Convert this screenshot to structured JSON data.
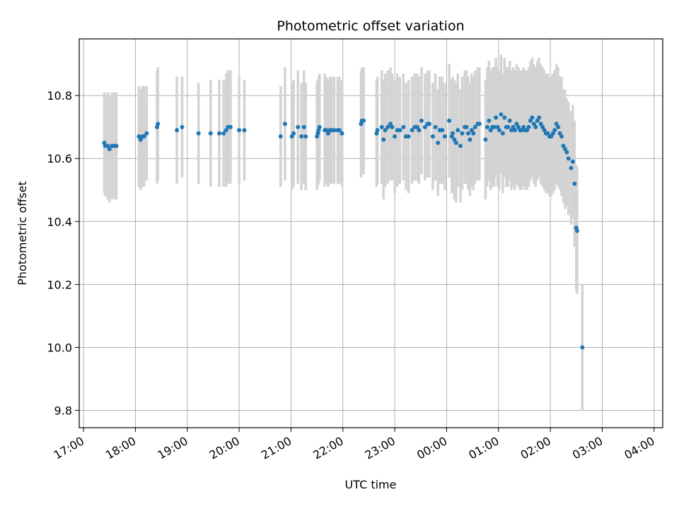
{
  "chart_data": {
    "type": "scatter",
    "title": "Photometric offset variation",
    "xlabel": "UTC time",
    "ylabel": "Photometric offset",
    "grid": true,
    "legend": "none",
    "xlim": [
      "16:55",
      "28:10"
    ],
    "ylim": [
      9.745,
      10.98
    ],
    "xticks": [
      "17:00",
      "18:00",
      "19:00",
      "20:00",
      "21:00",
      "22:00",
      "23:00",
      "00:00",
      "01:00",
      "02:00",
      "03:00",
      "04:00"
    ],
    "yticks": [
      9.8,
      10.0,
      10.2,
      10.4,
      10.6,
      10.8
    ],
    "colors": {
      "points": "#1f77b4",
      "errorbars": "#d3d3d3",
      "grid": "#b0b0b0"
    },
    "series": [
      {
        "points": [
          [
            "17:24",
            10.65,
            0.16
          ],
          [
            "17:25",
            10.64,
            0.16
          ],
          [
            "17:28",
            10.64,
            0.17
          ],
          [
            "17:30",
            10.63,
            0.17
          ],
          [
            "17:33",
            10.64,
            0.17
          ],
          [
            "17:36",
            10.64,
            0.17
          ],
          [
            "17:38",
            10.64,
            0.17
          ],
          [
            "18:04",
            10.67,
            0.16
          ],
          [
            "18:06",
            10.66,
            0.16
          ],
          [
            "18:08",
            10.67,
            0.16
          ],
          [
            "18:10",
            10.67,
            0.16
          ],
          [
            "18:13",
            10.68,
            0.15
          ],
          [
            "18:25",
            10.7,
            0.18
          ],
          [
            "18:26",
            10.71,
            0.18
          ],
          [
            "18:48",
            10.69,
            0.17
          ],
          [
            "18:54",
            10.7,
            0.16
          ],
          [
            "19:13",
            10.68,
            0.16
          ],
          [
            "19:27",
            10.68,
            0.17
          ],
          [
            "19:37",
            10.68,
            0.17
          ],
          [
            "19:42",
            10.68,
            0.17
          ],
          [
            "19:45",
            10.69,
            0.18
          ],
          [
            "19:47",
            10.7,
            0.18
          ],
          [
            "19:50",
            10.7,
            0.18
          ],
          [
            "20:00",
            10.69,
            0.17
          ],
          [
            "20:06",
            10.69,
            0.16
          ],
          [
            "20:48",
            10.67,
            0.16
          ],
          [
            "20:53",
            10.71,
            0.18
          ],
          [
            "21:01",
            10.67,
            0.17
          ],
          [
            "21:03",
            10.68,
            0.17
          ],
          [
            "21:08",
            10.7,
            0.18
          ],
          [
            "21:12",
            10.67,
            0.17
          ],
          [
            "21:15",
            10.7,
            0.18
          ],
          [
            "21:17",
            10.67,
            0.17
          ],
          [
            "21:30",
            10.67,
            0.17
          ],
          [
            "21:31",
            10.68,
            0.17
          ],
          [
            "21:32",
            10.69,
            0.17
          ],
          [
            "21:33",
            10.7,
            0.17
          ],
          [
            "21:39",
            10.69,
            0.18
          ],
          [
            "21:41",
            10.69,
            0.17
          ],
          [
            "21:43",
            10.68,
            0.17
          ],
          [
            "21:45",
            10.69,
            0.17
          ],
          [
            "21:47",
            10.69,
            0.17
          ],
          [
            "21:50",
            10.69,
            0.17
          ],
          [
            "21:54",
            10.69,
            0.17
          ],
          [
            "21:56",
            10.69,
            0.17
          ],
          [
            "21:59",
            10.68,
            0.17
          ],
          [
            "22:21",
            10.71,
            0.17
          ],
          [
            "22:22",
            10.72,
            0.17
          ],
          [
            "22:24",
            10.72,
            0.17
          ],
          [
            "22:39",
            10.68,
            0.17
          ],
          [
            "22:40",
            10.69,
            0.17
          ],
          [
            "22:45",
            10.7,
            0.18
          ],
          [
            "22:47",
            10.66,
            0.19
          ],
          [
            "22:49",
            10.69,
            0.18
          ],
          [
            "22:52",
            10.7,
            0.18
          ],
          [
            "22:55",
            10.71,
            0.18
          ],
          [
            "22:57",
            10.7,
            0.17
          ],
          [
            "23:00",
            10.67,
            0.18
          ],
          [
            "23:03",
            10.69,
            0.18
          ],
          [
            "23:06",
            10.69,
            0.17
          ],
          [
            "23:10",
            10.7,
            0.17
          ],
          [
            "23:13",
            10.67,
            0.17
          ],
          [
            "23:16",
            10.67,
            0.18
          ],
          [
            "23:20",
            10.69,
            0.17
          ],
          [
            "23:23",
            10.7,
            0.17
          ],
          [
            "23:26",
            10.7,
            0.17
          ],
          [
            "23:28",
            10.69,
            0.17
          ],
          [
            "23:31",
            10.72,
            0.17
          ],
          [
            "23:35",
            10.7,
            0.17
          ],
          [
            "23:38",
            10.71,
            0.17
          ],
          [
            "23:40",
            10.71,
            0.17
          ],
          [
            "23:44",
            10.67,
            0.17
          ],
          [
            "23:47",
            10.7,
            0.17
          ],
          [
            "23:50",
            10.65,
            0.17
          ],
          [
            "23:52",
            10.69,
            0.17
          ],
          [
            "23:55",
            10.69,
            0.17
          ],
          [
            "23:58",
            10.67,
            0.17
          ],
          [
            "24:03",
            10.72,
            0.18
          ],
          [
            "24:06",
            10.67,
            0.18
          ],
          [
            "24:07",
            10.68,
            0.18
          ],
          [
            "24:09",
            10.66,
            0.19
          ],
          [
            "24:11",
            10.65,
            0.19
          ],
          [
            "24:13",
            10.69,
            0.18
          ],
          [
            "24:16",
            10.64,
            0.18
          ],
          [
            "24:18",
            10.68,
            0.18
          ],
          [
            "24:21",
            10.7,
            0.18
          ],
          [
            "24:23",
            10.7,
            0.18
          ],
          [
            "24:25",
            10.68,
            0.18
          ],
          [
            "24:27",
            10.66,
            0.18
          ],
          [
            "24:29",
            10.69,
            0.18
          ],
          [
            "24:31",
            10.68,
            0.18
          ],
          [
            "24:33",
            10.7,
            0.18
          ],
          [
            "24:36",
            10.71,
            0.18
          ],
          [
            "24:38",
            10.71,
            0.18
          ],
          [
            "24:45",
            10.66,
            0.19
          ],
          [
            "24:47",
            10.7,
            0.19
          ],
          [
            "24:49",
            10.72,
            0.19
          ],
          [
            "24:51",
            10.69,
            0.19
          ],
          [
            "24:53",
            10.7,
            0.19
          ],
          [
            "24:55",
            10.7,
            0.19
          ],
          [
            "24:57",
            10.73,
            0.19
          ],
          [
            "24:59",
            10.7,
            0.19
          ],
          [
            "25:01",
            10.69,
            0.19
          ],
          [
            "25:03",
            10.74,
            0.19
          ],
          [
            "25:05",
            10.68,
            0.19
          ],
          [
            "25:07",
            10.73,
            0.19
          ],
          [
            "25:09",
            10.7,
            0.19
          ],
          [
            "25:11",
            10.7,
            0.19
          ],
          [
            "25:13",
            10.72,
            0.19
          ],
          [
            "25:15",
            10.69,
            0.19
          ],
          [
            "25:17",
            10.7,
            0.19
          ],
          [
            "25:19",
            10.69,
            0.19
          ],
          [
            "25:21",
            10.71,
            0.19
          ],
          [
            "25:23",
            10.7,
            0.19
          ],
          [
            "25:25",
            10.69,
            0.19
          ],
          [
            "25:27",
            10.69,
            0.19
          ],
          [
            "25:29",
            10.7,
            0.19
          ],
          [
            "25:31",
            10.69,
            0.19
          ],
          [
            "25:33",
            10.69,
            0.19
          ],
          [
            "25:35",
            10.7,
            0.19
          ],
          [
            "25:37",
            10.72,
            0.19
          ],
          [
            "25:39",
            10.73,
            0.19
          ],
          [
            "25:41",
            10.71,
            0.19
          ],
          [
            "25:43",
            10.7,
            0.19
          ],
          [
            "25:45",
            10.72,
            0.19
          ],
          [
            "25:47",
            10.73,
            0.19
          ],
          [
            "25:49",
            10.71,
            0.19
          ],
          [
            "25:51",
            10.7,
            0.19
          ],
          [
            "25:53",
            10.69,
            0.19
          ],
          [
            "25:55",
            10.68,
            0.19
          ],
          [
            "25:57",
            10.68,
            0.19
          ],
          [
            "25:59",
            10.67,
            0.19
          ],
          [
            "26:01",
            10.67,
            0.19
          ],
          [
            "26:03",
            10.68,
            0.19
          ],
          [
            "26:05",
            10.69,
            0.19
          ],
          [
            "26:07",
            10.71,
            0.19
          ],
          [
            "26:09",
            10.7,
            0.19
          ],
          [
            "26:11",
            10.68,
            0.18
          ],
          [
            "26:13",
            10.67,
            0.19
          ],
          [
            "26:15",
            10.64,
            0.18
          ],
          [
            "26:17",
            10.63,
            0.19
          ],
          [
            "26:19",
            10.62,
            0.17
          ],
          [
            "26:21",
            10.6,
            0.18
          ],
          [
            "26:24",
            10.57,
            0.18
          ],
          [
            "26:26",
            10.59,
            0.18
          ],
          [
            "26:28",
            10.52,
            0.2
          ],
          [
            "26:30",
            10.38,
            0.2
          ],
          [
            "26:31",
            10.37,
            0.2
          ],
          [
            "26:37",
            10.0,
            0.2
          ]
        ]
      }
    ]
  }
}
